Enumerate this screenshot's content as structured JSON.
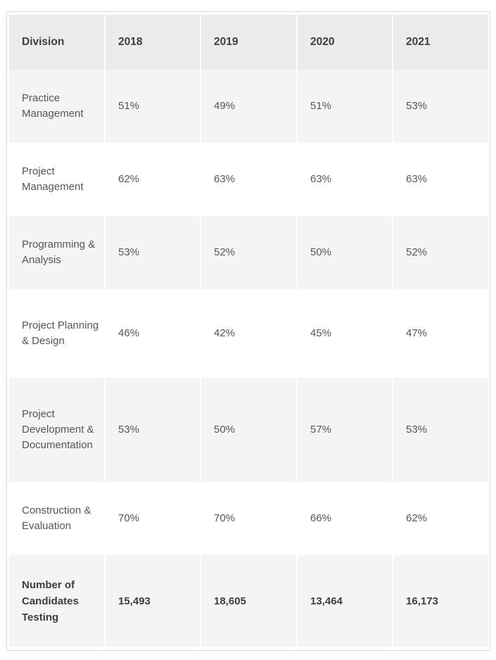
{
  "table": {
    "headers": [
      "Division",
      "2018",
      "2019",
      "2020",
      "2021"
    ],
    "rows": [
      {
        "division": "Practice Management",
        "values": [
          "51%",
          "49%",
          "51%",
          "53%"
        ]
      },
      {
        "division": "Project Management",
        "values": [
          "62%",
          "63%",
          "63%",
          "63%"
        ]
      },
      {
        "division": "Programming & Analysis",
        "values": [
          "53%",
          "52%",
          "50%",
          "52%"
        ]
      },
      {
        "division": "Project Planning & Design",
        "values": [
          "46%",
          "42%",
          "45%",
          "47%"
        ]
      },
      {
        "division": "Project Development & Documentation",
        "values": [
          "53%",
          "50%",
          "57%",
          "53%"
        ]
      },
      {
        "division": "Construction & Evaluation",
        "values": [
          "70%",
          "70%",
          "66%",
          "62%"
        ]
      }
    ],
    "total": {
      "label": "Number of Candidates Testing",
      "values": [
        "15,493",
        "18,605",
        "13,464",
        "16,173"
      ]
    }
  }
}
